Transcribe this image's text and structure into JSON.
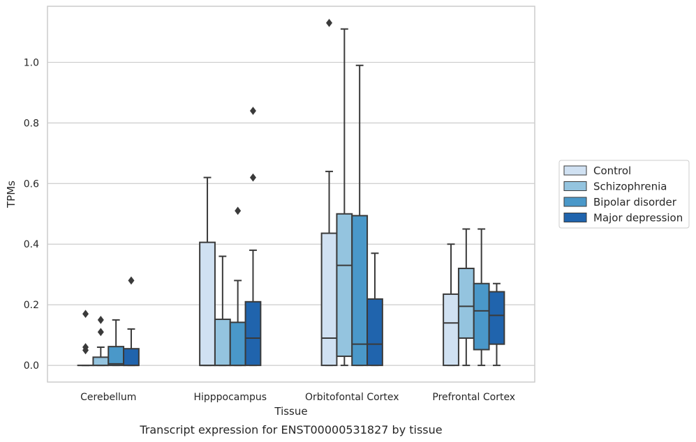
{
  "chart_data": {
    "type": "box",
    "xlabel": "Tissue",
    "ylabel": "TPMs",
    "caption": "Transcript expression for ENST00000531827 by tissue",
    "categories": [
      "Cerebellum",
      "Hipppocampus",
      "Orbitofontal Cortex",
      "Prefrontal Cortex"
    ],
    "ylim": [
      -0.055,
      1.185
    ],
    "yticks": [
      0.0,
      0.2,
      0.4,
      0.6,
      0.8,
      1.0
    ],
    "ytick_labels": [
      "0.0",
      "0.2",
      "0.4",
      "0.6",
      "0.8",
      "1.0"
    ],
    "grid": "horizontal",
    "legend_position": "right",
    "series": [
      {
        "name": "Control",
        "color": "#d0e1f2",
        "boxes": [
          {
            "q1": 0.0,
            "median": 0.0,
            "q3": 0.0,
            "whislo": 0.0,
            "whishi": 0.0,
            "fliers": [
              0.05,
              0.06,
              0.17
            ]
          },
          {
            "q1": 0.0,
            "median": 0.0,
            "q3": 0.406,
            "whislo": 0.0,
            "whishi": 0.62,
            "fliers": []
          },
          {
            "q1": 0.0,
            "median": 0.09,
            "q3": 0.436,
            "whislo": 0.0,
            "whishi": 0.64,
            "fliers": [
              1.13
            ]
          },
          {
            "q1": 0.0,
            "median": 0.14,
            "q3": 0.235,
            "whislo": 0.0,
            "whishi": 0.4,
            "fliers": []
          }
        ]
      },
      {
        "name": "Schizophrenia",
        "color": "#94c4df",
        "boxes": [
          {
            "q1": 0.0,
            "median": 0.0,
            "q3": 0.027,
            "whislo": 0.0,
            "whishi": 0.06,
            "fliers": [
              0.11,
              0.15
            ]
          },
          {
            "q1": 0.0,
            "median": 0.0,
            "q3": 0.152,
            "whislo": 0.0,
            "whishi": 0.36,
            "fliers": []
          },
          {
            "q1": 0.03,
            "median": 0.33,
            "q3": 0.5,
            "whislo": 0.0,
            "whishi": 1.11,
            "fliers": []
          },
          {
            "q1": 0.09,
            "median": 0.195,
            "q3": 0.32,
            "whislo": 0.0,
            "whishi": 0.45,
            "fliers": []
          }
        ]
      },
      {
        "name": "Bipolar disorder",
        "color": "#4a98c9",
        "boxes": [
          {
            "q1": 0.0,
            "median": 0.005,
            "q3": 0.062,
            "whislo": 0.0,
            "whishi": 0.15,
            "fliers": []
          },
          {
            "q1": 0.0,
            "median": 0.0,
            "q3": 0.142,
            "whislo": 0.0,
            "whishi": 0.28,
            "fliers": [
              0.51
            ]
          },
          {
            "q1": 0.0,
            "median": 0.07,
            "q3": 0.494,
            "whislo": 0.0,
            "whishi": 0.99,
            "fliers": []
          },
          {
            "q1": 0.052,
            "median": 0.18,
            "q3": 0.27,
            "whislo": 0.0,
            "whishi": 0.45,
            "fliers": []
          }
        ]
      },
      {
        "name": "Major depression",
        "color": "#2064ad",
        "boxes": [
          {
            "q1": 0.0,
            "median": 0.0,
            "q3": 0.055,
            "whislo": 0.0,
            "whishi": 0.12,
            "fliers": [
              0.28
            ]
          },
          {
            "q1": 0.0,
            "median": 0.09,
            "q3": 0.21,
            "whislo": 0.0,
            "whishi": 0.38,
            "fliers": [
              0.62,
              0.84
            ]
          },
          {
            "q1": 0.0,
            "median": 0.07,
            "q3": 0.219,
            "whislo": 0.0,
            "whishi": 0.37,
            "fliers": []
          },
          {
            "q1": 0.07,
            "median": 0.165,
            "q3": 0.243,
            "whislo": 0.0,
            "whishi": 0.27,
            "fliers": []
          }
        ]
      }
    ]
  }
}
